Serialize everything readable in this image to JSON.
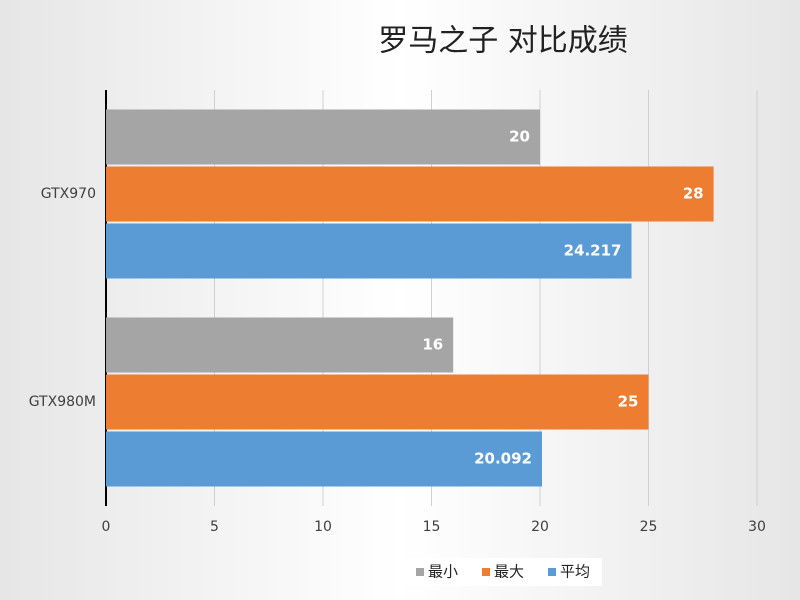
{
  "chart_data": {
    "type": "hbar",
    "title": "罗马之子 对比成绩",
    "categories": [
      "GTX970",
      "GTX980M"
    ],
    "series": [
      {
        "name": "最小",
        "color": "#a5a5a5",
        "values": [
          20,
          16
        ]
      },
      {
        "name": "最大",
        "color": "#ed7d31",
        "values": [
          28,
          25
        ]
      },
      {
        "name": "平均",
        "color": "#5b9bd5",
        "values": [
          24.217,
          20.092
        ]
      }
    ],
    "xlim": [
      0,
      30
    ],
    "xticks": [
      0,
      5,
      10,
      15,
      20,
      25,
      30
    ],
    "grid": true,
    "legend": "bottom"
  }
}
